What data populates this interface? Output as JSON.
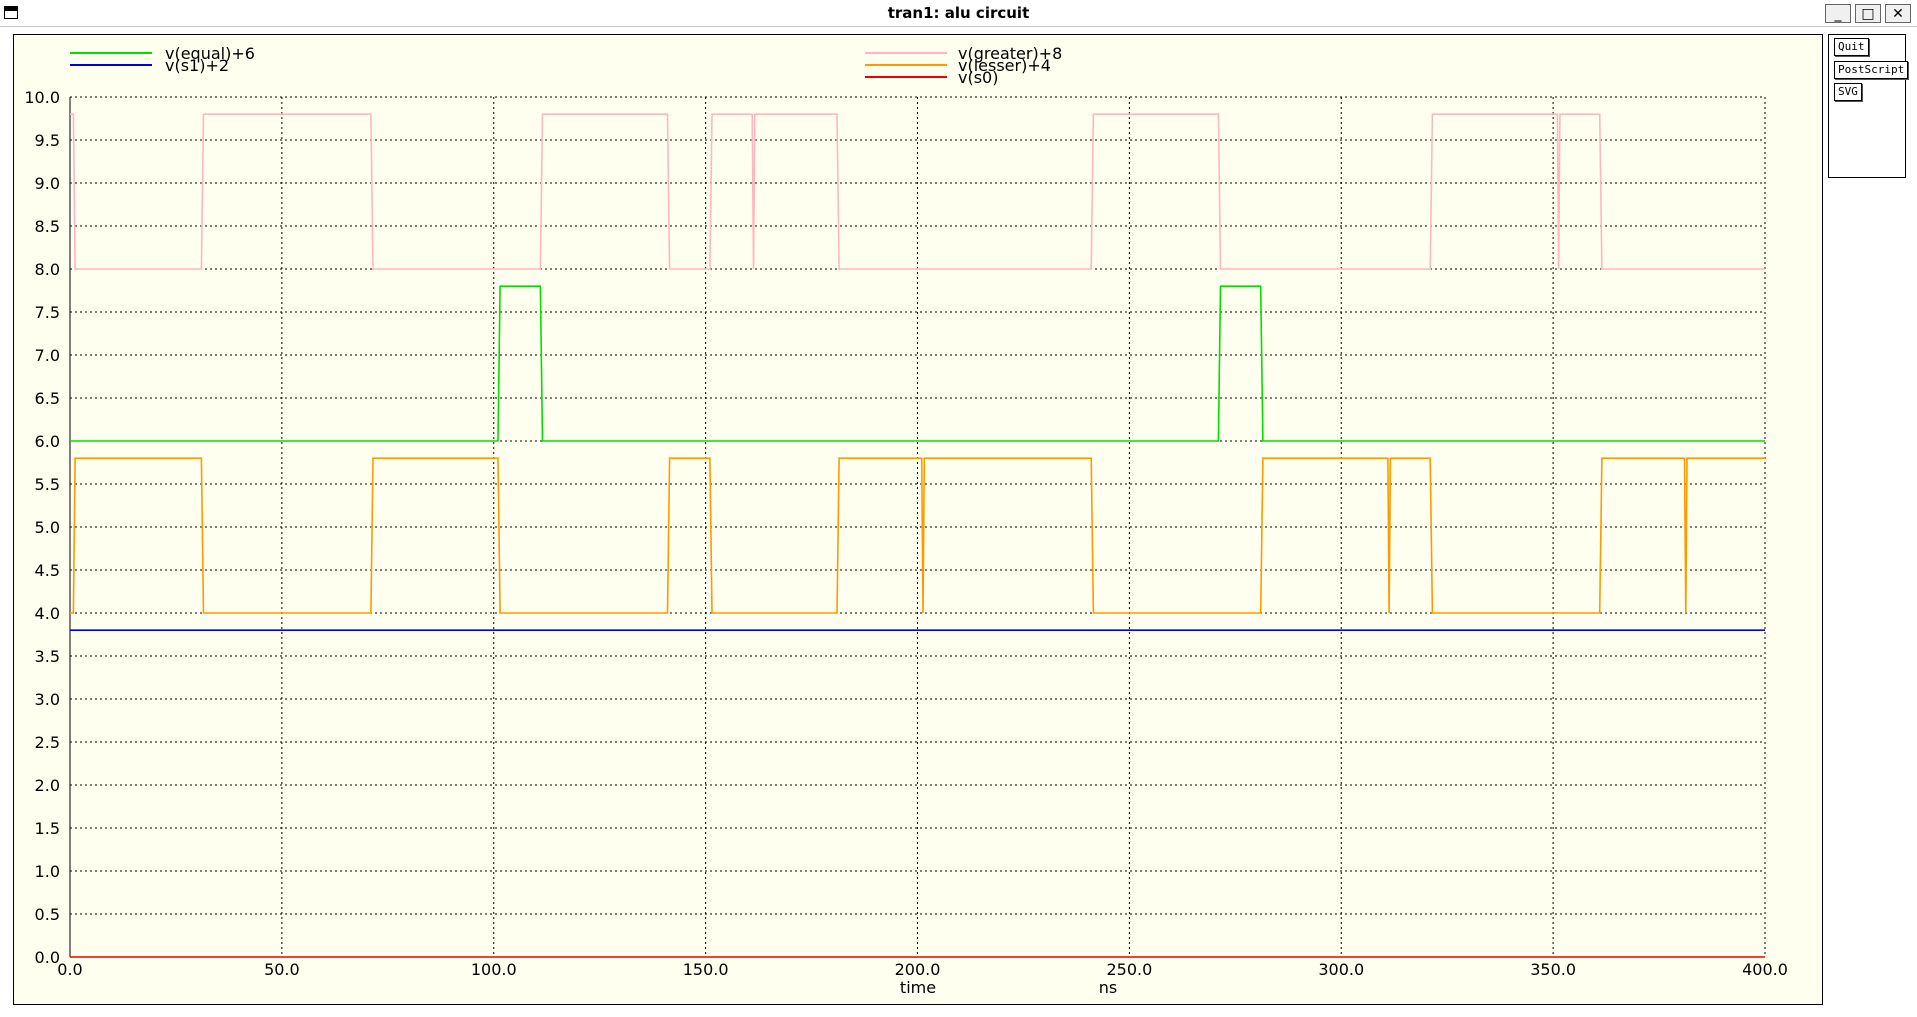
{
  "window": {
    "title": "tran1: alu circuit",
    "controls": {
      "minimize": "_",
      "maximize": "□",
      "close": "✕"
    }
  },
  "buttons": {
    "quit": "Quit",
    "postscript": "PostScript",
    "svg": "SVG"
  },
  "colors": {
    "background": "#fffff0",
    "grid": "#000000",
    "equal": "#00e000",
    "s1": "#0000dd",
    "greater": "#ffb6c1",
    "lesser": "#ff9900",
    "s0": "#ee0000"
  },
  "chart_data": {
    "type": "line",
    "title": "",
    "xlabel": "time",
    "xunit": "ns",
    "ylabel": "",
    "xlim": [
      0,
      400
    ],
    "ylim": [
      0,
      10
    ],
    "xticks": [
      "0.0",
      "50.0",
      "100.0",
      "150.0",
      "200.0",
      "250.0",
      "300.0",
      "350.0",
      "400.0"
    ],
    "yticks": [
      "0.0",
      "0.5",
      "1.0",
      "1.5",
      "2.0",
      "2.5",
      "3.0",
      "3.5",
      "4.0",
      "4.5",
      "5.0",
      "5.5",
      "6.0",
      "6.5",
      "7.0",
      "7.5",
      "8.0",
      "8.5",
      "9.0",
      "9.5",
      "10.0"
    ],
    "grid": true,
    "legend_position": "top",
    "series": [
      {
        "name": "v(equal)+6",
        "color": "#00e000",
        "x": [
          0,
          101,
          101.5,
          111,
          111.5,
          271,
          271.5,
          281,
          281.5,
          400
        ],
        "y": [
          6.0,
          6.0,
          7.8,
          7.8,
          6.0,
          6.0,
          7.8,
          7.8,
          6.0,
          6.0
        ]
      },
      {
        "name": "v(s1)+2",
        "color": "#0000dd",
        "x": [
          0,
          400
        ],
        "y": [
          3.8,
          3.8
        ]
      },
      {
        "name": "v(greater)+8",
        "color": "#ffb6c1",
        "x": [
          0,
          0.8,
          1.2,
          31,
          31.5,
          71,
          71.5,
          111,
          111.5,
          141,
          141.5,
          151,
          151.5,
          161,
          161.3,
          161.6,
          161.9,
          181,
          181.5,
          241,
          241.5,
          271,
          271.5,
          321,
          321.5,
          351,
          351.3,
          351.6,
          351.9,
          361,
          361.5,
          400
        ],
        "y": [
          9.8,
          9.8,
          8.0,
          8.0,
          9.8,
          9.8,
          8.0,
          8.0,
          9.8,
          9.8,
          8.0,
          8.0,
          9.8,
          9.8,
          8.0,
          9.8,
          9.8,
          9.8,
          8.0,
          8.0,
          9.8,
          9.8,
          8.0,
          8.0,
          9.8,
          9.8,
          8.0,
          9.8,
          9.8,
          9.8,
          8.0,
          8.0
        ]
      },
      {
        "name": "v(lesser)+4",
        "color": "#ff9900",
        "x": [
          0,
          0.8,
          1.2,
          31,
          31.5,
          71,
          71.5,
          101,
          101.5,
          141,
          141.5,
          151,
          151.5,
          181,
          181.5,
          201,
          201.3,
          201.6,
          201.9,
          241,
          241.5,
          281,
          281.5,
          311,
          311.3,
          311.6,
          311.9,
          321,
          321.5,
          361,
          361.5,
          381,
          381.3,
          381.6,
          381.9,
          400
        ],
        "y": [
          4.0,
          4.0,
          5.8,
          5.8,
          4.0,
          4.0,
          5.8,
          5.8,
          4.0,
          4.0,
          5.8,
          5.8,
          4.0,
          4.0,
          5.8,
          5.8,
          4.0,
          5.8,
          5.8,
          5.8,
          4.0,
          4.0,
          5.8,
          5.8,
          4.0,
          5.8,
          5.8,
          5.8,
          4.0,
          4.0,
          5.8,
          5.8,
          4.0,
          5.8,
          5.8,
          5.8
        ]
      },
      {
        "name": "v(s0)",
        "color": "#ee0000",
        "x": [
          0,
          400
        ],
        "y": [
          0.0,
          0.0
        ]
      }
    ]
  }
}
